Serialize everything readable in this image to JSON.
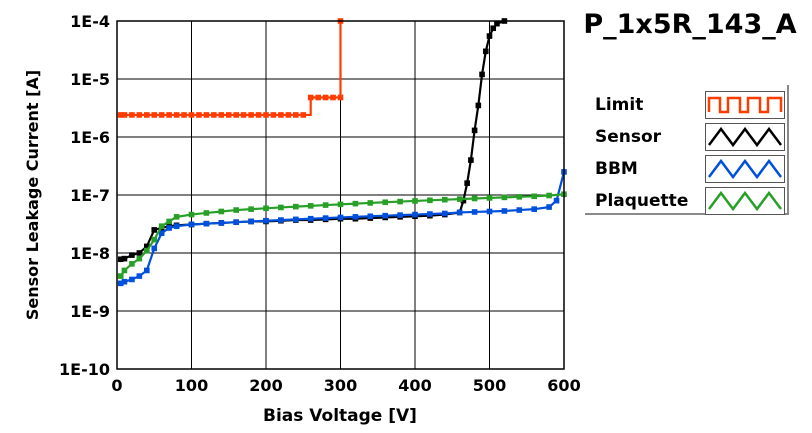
{
  "chart_data": {
    "type": "line",
    "title": "P_1x5R_143_A",
    "xlabel": "Bias Voltage [V]",
    "ylabel": "Sensor Leakage Current [A]",
    "xlim": [
      0,
      600
    ],
    "ylim": [
      1e-10,
      0.0001
    ],
    "yscale": "log",
    "grid": true,
    "legend_position": "right",
    "xticks": [
      0,
      100,
      200,
      300,
      400,
      500,
      600
    ],
    "xtick_labels": [
      "0",
      "100",
      "200",
      "300",
      "400",
      "500",
      "600"
    ],
    "yticks": [
      0.0001,
      1e-05,
      1e-06,
      1e-07,
      1e-08,
      1e-09,
      1e-10
    ],
    "ytick_labels": [
      "1E-4",
      "1E-5",
      "1E-6",
      "1E-7",
      "1E-8",
      "1E-9",
      "1E-10"
    ],
    "series": [
      {
        "name": "Limit",
        "color": "#ff3c00",
        "step": true,
        "x": [
          5,
          10,
          20,
          30,
          40,
          50,
          60,
          70,
          80,
          90,
          100,
          110,
          120,
          130,
          140,
          150,
          160,
          170,
          180,
          190,
          200,
          210,
          220,
          230,
          240,
          250,
          260,
          270,
          280,
          290,
          300,
          300
        ],
        "y": [
          2.4e-06,
          2.4e-06,
          2.4e-06,
          2.4e-06,
          2.4e-06,
          2.4e-06,
          2.4e-06,
          2.4e-06,
          2.4e-06,
          2.4e-06,
          2.4e-06,
          2.4e-06,
          2.4e-06,
          2.4e-06,
          2.4e-06,
          2.4e-06,
          2.4e-06,
          2.4e-06,
          2.4e-06,
          2.4e-06,
          2.4e-06,
          2.4e-06,
          2.4e-06,
          2.4e-06,
          2.4e-06,
          2.4e-06,
          4.8e-06,
          4.8e-06,
          4.8e-06,
          4.8e-06,
          4.8e-06,
          0.0001
        ]
      },
      {
        "name": "Sensor",
        "color": "#000000",
        "x": [
          5,
          10,
          20,
          30,
          40,
          50,
          60,
          70,
          80,
          100,
          120,
          140,
          160,
          180,
          200,
          220,
          240,
          260,
          280,
          300,
          320,
          340,
          360,
          380,
          400,
          420,
          440,
          460,
          465,
          470,
          475,
          480,
          485,
          490,
          495,
          500,
          505,
          510,
          520
        ],
        "y": [
          7.8e-09,
          8e-09,
          9.2e-09,
          1e-08,
          1.3e-08,
          2.5e-08,
          2.7e-08,
          2.9e-08,
          3e-08,
          3.1e-08,
          3.2e-08,
          3.3e-08,
          3.4e-08,
          3.5e-08,
          3.5e-08,
          3.6e-08,
          3.7e-08,
          3.7e-08,
          3.8e-08,
          3.9e-08,
          3.9e-08,
          4e-08,
          4.1e-08,
          4.2e-08,
          4.3e-08,
          4.4e-08,
          4.6e-08,
          5e-08,
          8e-08,
          1.6e-07,
          4e-07,
          1.3e-06,
          3.5e-06,
          1.2e-05,
          3e-05,
          5.5e-05,
          7.5e-05,
          9e-05,
          0.0001
        ]
      },
      {
        "name": "BBM",
        "color": "#0050dc",
        "x": [
          5,
          10,
          20,
          30,
          40,
          50,
          60,
          70,
          80,
          100,
          120,
          140,
          160,
          180,
          200,
          220,
          240,
          260,
          280,
          300,
          320,
          340,
          360,
          380,
          400,
          420,
          440,
          460,
          480,
          500,
          520,
          540,
          560,
          580,
          590,
          600
        ],
        "y": [
          3e-09,
          3.2e-09,
          3.5e-09,
          4e-09,
          5e-09,
          1.2e-08,
          2.2e-08,
          2.7e-08,
          2.9e-08,
          3.1e-08,
          3.2e-08,
          3.3e-08,
          3.4e-08,
          3.5e-08,
          3.6e-08,
          3.7e-08,
          3.8e-08,
          3.9e-08,
          4e-08,
          4.1e-08,
          4.2e-08,
          4.3e-08,
          4.4e-08,
          4.5e-08,
          4.6e-08,
          4.7e-08,
          4.8e-08,
          5e-08,
          5.1e-08,
          5.2e-08,
          5.3e-08,
          5.5e-08,
          5.7e-08,
          6.2e-08,
          8e-08,
          2.5e-07
        ]
      },
      {
        "name": "Plaquette",
        "color": "#28a028",
        "x": [
          5,
          10,
          20,
          30,
          40,
          50,
          60,
          70,
          80,
          100,
          120,
          140,
          160,
          180,
          200,
          220,
          240,
          260,
          280,
          300,
          320,
          340,
          360,
          380,
          400,
          420,
          440,
          460,
          480,
          500,
          520,
          540,
          560,
          580,
          600
        ],
        "y": [
          4e-09,
          5e-09,
          6.5e-09,
          8e-09,
          1.1e-08,
          1.7e-08,
          2.9e-08,
          3.5e-08,
          4.2e-08,
          4.6e-08,
          4.9e-08,
          5.2e-08,
          5.5e-08,
          5.7e-08,
          5.9e-08,
          6.1e-08,
          6.3e-08,
          6.5e-08,
          6.7e-08,
          6.9e-08,
          7.1e-08,
          7.3e-08,
          7.5e-08,
          7.7e-08,
          7.9e-08,
          8.1e-08,
          8.3e-08,
          8.5e-08,
          8.7e-08,
          8.9e-08,
          9.1e-08,
          9.3e-08,
          9.5e-08,
          9.8e-08,
          1.03e-07
        ]
      }
    ]
  }
}
